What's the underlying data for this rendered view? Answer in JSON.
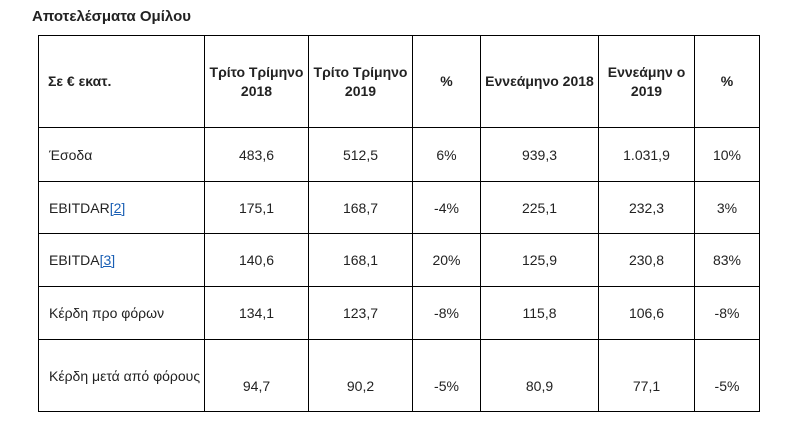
{
  "title": "Αποτελέσματα Ομίλου",
  "table": {
    "headers": [
      "Σε € εκατ.",
      "Τρίτο Τρίμηνο 2018",
      "Τρίτο Τρίμηνο 2019",
      "%",
      "Εννεάμηνο 2018",
      "Εννεάμην ο 2019",
      "%"
    ],
    "rows": [
      {
        "label": "Έσοδα",
        "ref": "",
        "values": [
          "483,6",
          "512,5",
          "6%",
          "939,3",
          "1.031,9",
          "10%"
        ]
      },
      {
        "label": "EBITDAR",
        "ref": "[2]",
        "values": [
          "175,1",
          "168,7",
          "-4%",
          "225,1",
          "232,3",
          "3%"
        ]
      },
      {
        "label": "EBITDA",
        "ref": "[3]",
        "values": [
          "140,6",
          "168,1",
          "20%",
          "125,9",
          "230,8",
          "83%"
        ]
      },
      {
        "label": "Κέρδη προ φόρων",
        "ref": "",
        "values": [
          "134,1",
          "123,7",
          "-8%",
          "115,8",
          "106,6",
          "-8%"
        ]
      },
      {
        "label": "Κέρδη μετά από φόρους",
        "ref": "",
        "values": [
          "94,7",
          "90,2",
          "-5%",
          "80,9",
          "77,1",
          "-5%"
        ]
      }
    ]
  }
}
